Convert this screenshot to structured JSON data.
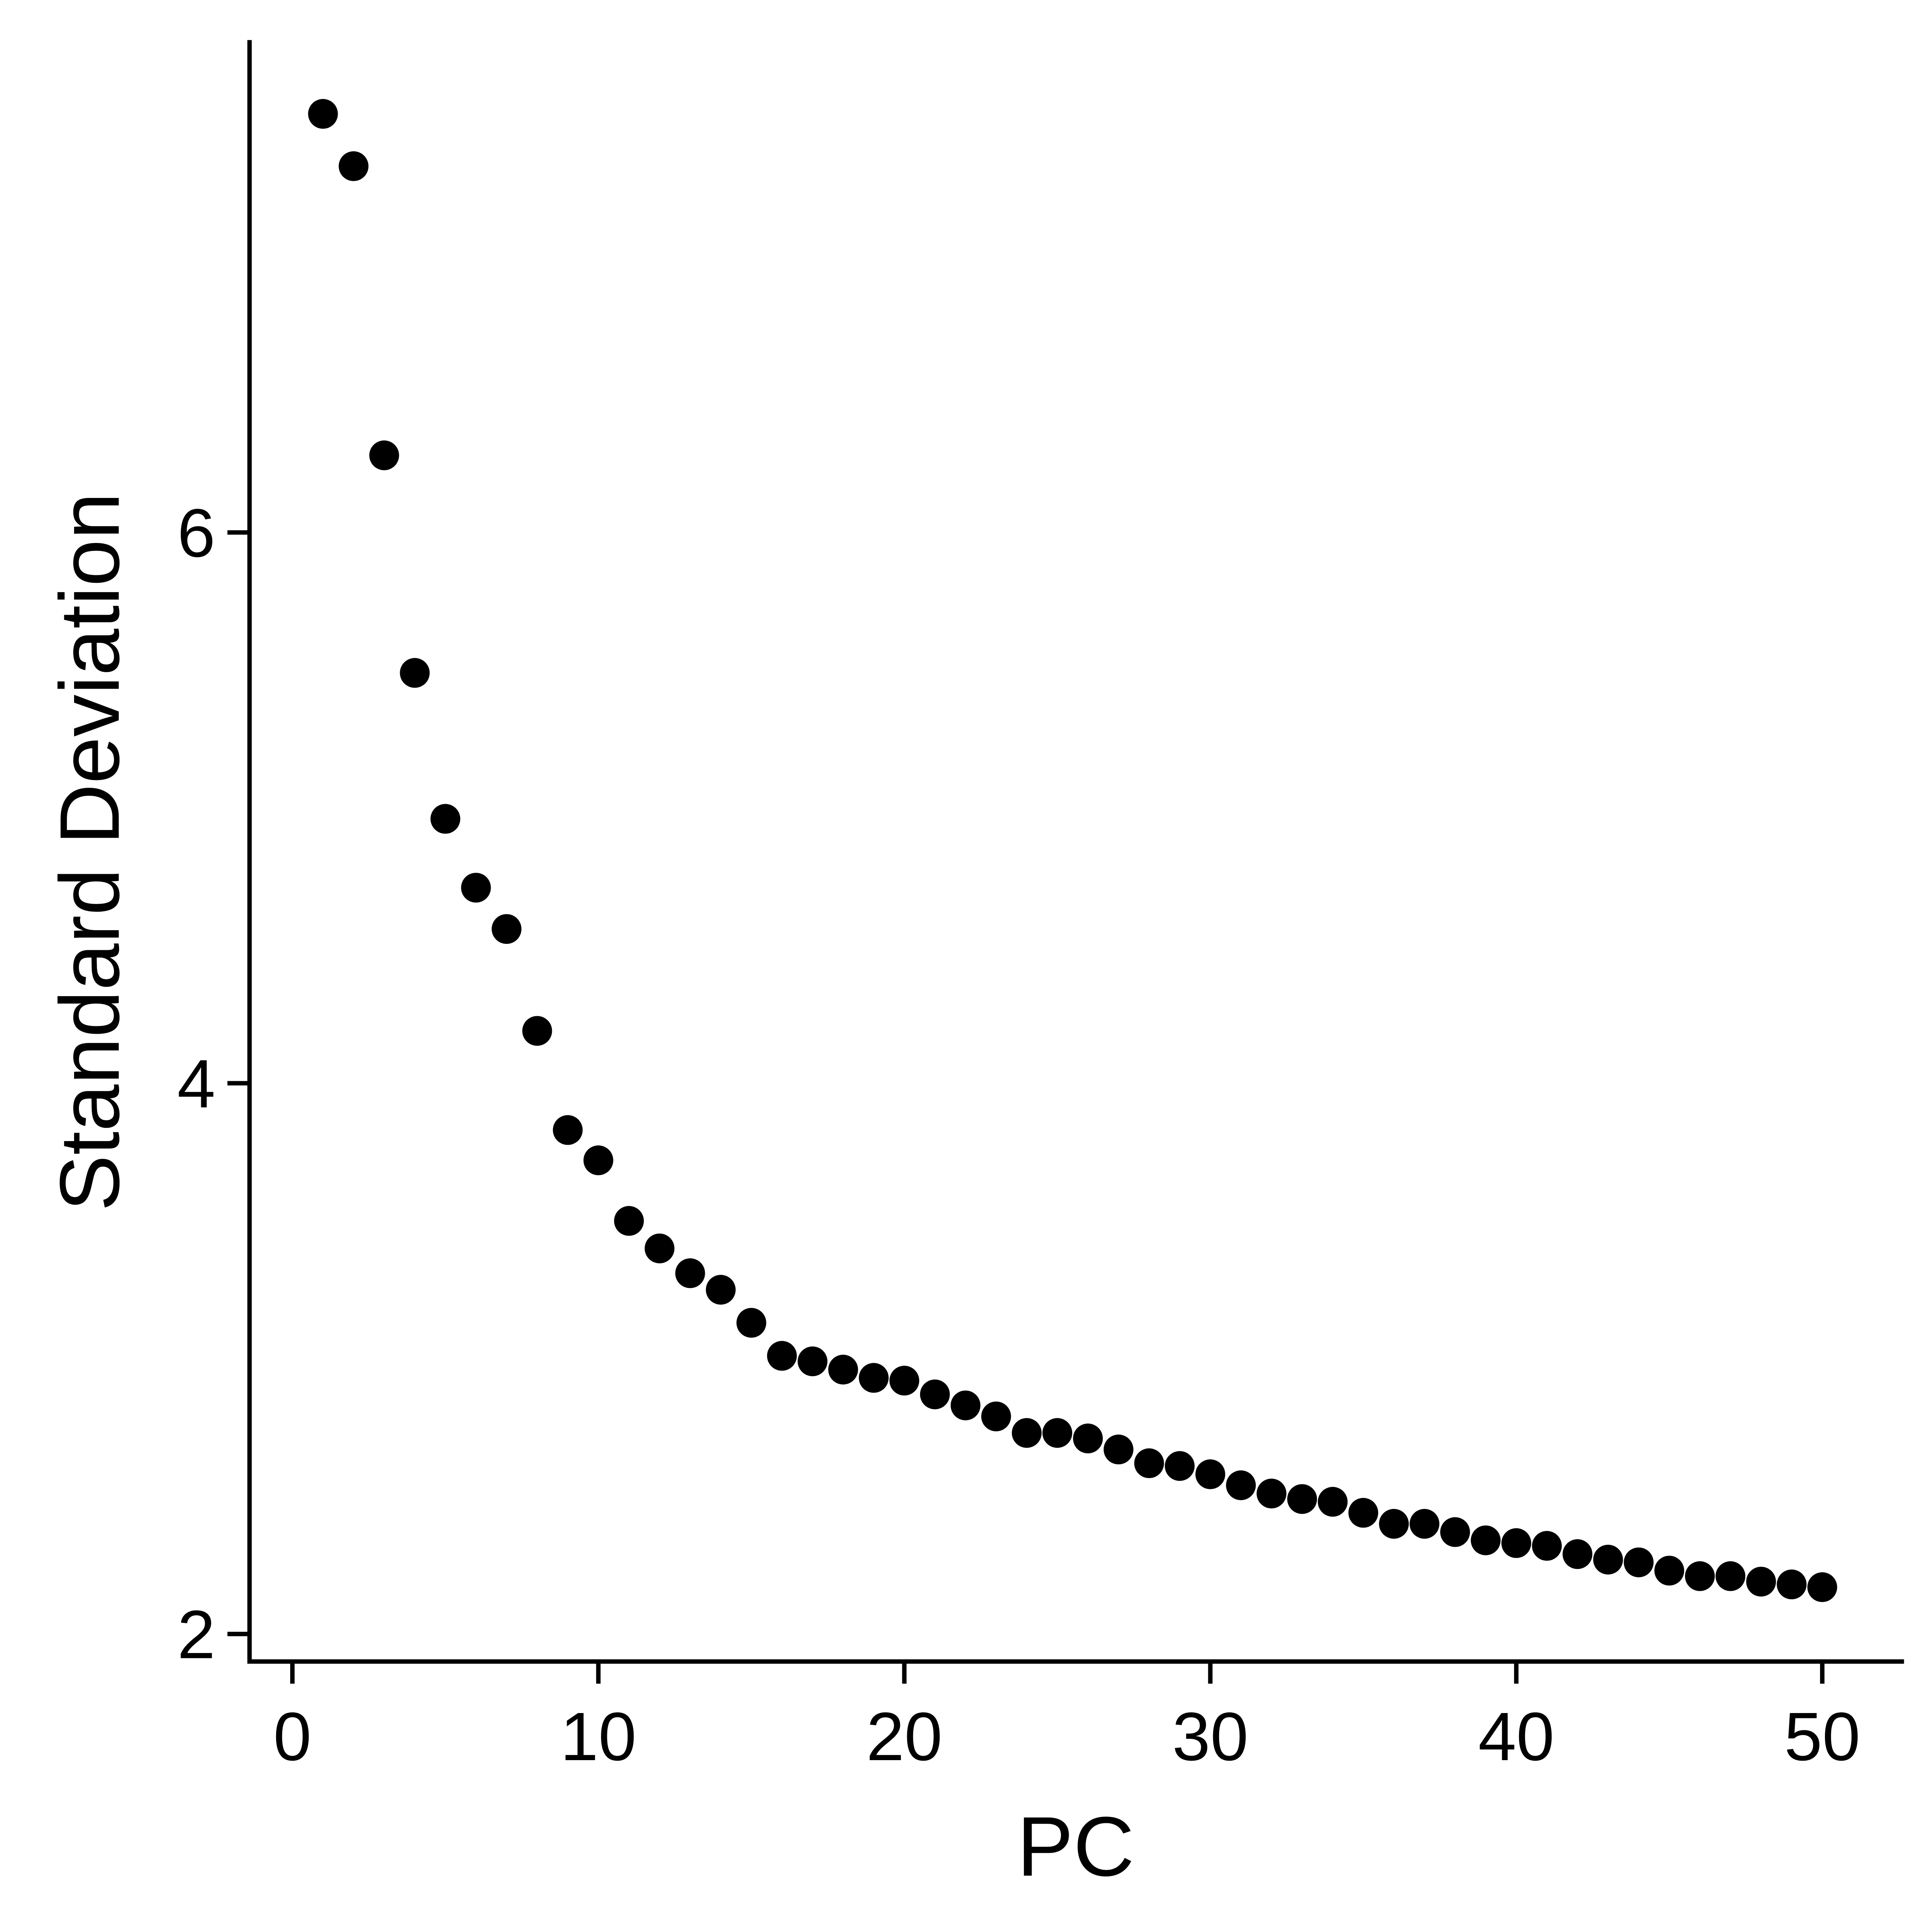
{
  "chart_data": {
    "type": "scatter",
    "title": "",
    "xlabel": "PC",
    "ylabel": "Standard Deviation",
    "xlim": [
      -1.4,
      52.6
    ],
    "ylim": [
      1.9,
      7.78
    ],
    "xticks": [
      0,
      10,
      20,
      30,
      40,
      50
    ],
    "yticks": [
      2,
      4,
      6
    ],
    "xtick_labels": [
      "0",
      "10",
      "20",
      "30",
      "40",
      "50"
    ],
    "ytick_labels": [
      "2",
      "4",
      "6"
    ],
    "grid": false,
    "legend": "none",
    "point_color": "#000000",
    "x": [
      1,
      2,
      3,
      4,
      5,
      6,
      7,
      8,
      9,
      10,
      11,
      12,
      13,
      14,
      15,
      16,
      17,
      18,
      19,
      20,
      21,
      22,
      23,
      24,
      25,
      26,
      27,
      28,
      29,
      30,
      31,
      32,
      33,
      34,
      35,
      36,
      37,
      38,
      39,
      40,
      41,
      42,
      43,
      44,
      45,
      46,
      47,
      48,
      49,
      50
    ],
    "y": [
      7.52,
      7.33,
      6.28,
      5.49,
      4.96,
      4.71,
      4.56,
      4.19,
      3.83,
      3.72,
      3.5,
      3.4,
      3.31,
      3.25,
      3.13,
      3.01,
      2.99,
      2.96,
      2.93,
      2.92,
      2.87,
      2.83,
      2.79,
      2.73,
      2.73,
      2.71,
      2.67,
      2.62,
      2.61,
      2.58,
      2.54,
      2.51,
      2.49,
      2.48,
      2.44,
      2.4,
      2.4,
      2.37,
      2.34,
      2.33,
      2.32,
      2.29,
      2.27,
      2.26,
      2.23,
      2.21,
      2.21,
      2.19,
      2.18,
      2.17
    ]
  }
}
